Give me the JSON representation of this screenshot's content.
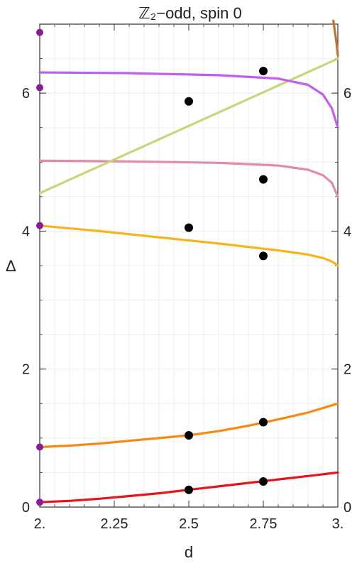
{
  "chart_data": {
    "type": "scatter",
    "title": "ℤ₂−odd, spin 0",
    "xlabel": "d",
    "ylabel": "Δ",
    "xlim": [
      2.0,
      3.0
    ],
    "ylim": [
      0,
      7.0
    ],
    "x_ticks": [
      2.0,
      2.25,
      2.5,
      2.75,
      3.0
    ],
    "x_tick_labels": [
      "2.",
      "2.25",
      "2.5",
      "2.75",
      "3."
    ],
    "y_ticks": [
      0,
      2,
      4,
      6
    ],
    "y_tick_labels": [
      "0",
      "2",
      "4",
      "6"
    ],
    "grid": true,
    "curves": [
      {
        "color": "#e8141c",
        "x": [
          2.0,
          2.1,
          2.2,
          2.3,
          2.4,
          2.5,
          2.6,
          2.7,
          2.8,
          2.9,
          3.0
        ],
        "y": [
          0.07,
          0.09,
          0.12,
          0.16,
          0.2,
          0.25,
          0.3,
          0.35,
          0.4,
          0.45,
          0.5
        ]
      },
      {
        "color": "#f48a12",
        "x": [
          2.0,
          2.1,
          2.2,
          2.3,
          2.4,
          2.5,
          2.6,
          2.7,
          2.8,
          2.9,
          3.0
        ],
        "y": [
          0.87,
          0.89,
          0.92,
          0.96,
          1.0,
          1.04,
          1.1,
          1.18,
          1.27,
          1.37,
          1.5
        ]
      },
      {
        "color": "#f8b21c",
        "x": [
          2.0,
          2.2,
          2.4,
          2.6,
          2.8,
          2.9,
          2.95,
          2.98,
          3.0
        ],
        "y": [
          4.08,
          4.0,
          3.91,
          3.82,
          3.72,
          3.66,
          3.61,
          3.56,
          3.5
        ]
      },
      {
        "color": "#e38aa8",
        "x": [
          2.0,
          2.3,
          2.6,
          2.8,
          2.9,
          2.95,
          2.98,
          3.0
        ],
        "y": [
          5.02,
          5.01,
          4.99,
          4.95,
          4.89,
          4.81,
          4.7,
          4.5
        ]
      },
      {
        "color": "#c4d87a",
        "x": [
          2.0,
          3.0
        ],
        "y": [
          4.55,
          6.5
        ]
      },
      {
        "color": "#c35cf0",
        "x": [
          2.0,
          2.3,
          2.6,
          2.8,
          2.9,
          2.95,
          2.98,
          3.0
        ],
        "y": [
          6.3,
          6.29,
          6.26,
          6.21,
          6.12,
          5.98,
          5.78,
          5.5
        ]
      },
      {
        "color": "#c87028",
        "x": [
          2.985,
          2.99,
          2.995,
          3.0
        ],
        "y": [
          7.05,
          6.9,
          6.75,
          6.55
        ]
      }
    ],
    "black_points": {
      "x": [
        2.5,
        2.5,
        2.5,
        2.5,
        2.75,
        2.75,
        2.75,
        2.75,
        2.75
      ],
      "y": [
        0.25,
        1.04,
        4.05,
        5.88,
        0.37,
        1.23,
        3.64,
        4.75,
        6.32
      ]
    },
    "purple_points": {
      "x": [
        2.0,
        2.0,
        2.0,
        2.0,
        2.0
      ],
      "y": [
        0.07,
        0.87,
        4.08,
        6.08,
        6.88
      ]
    }
  }
}
